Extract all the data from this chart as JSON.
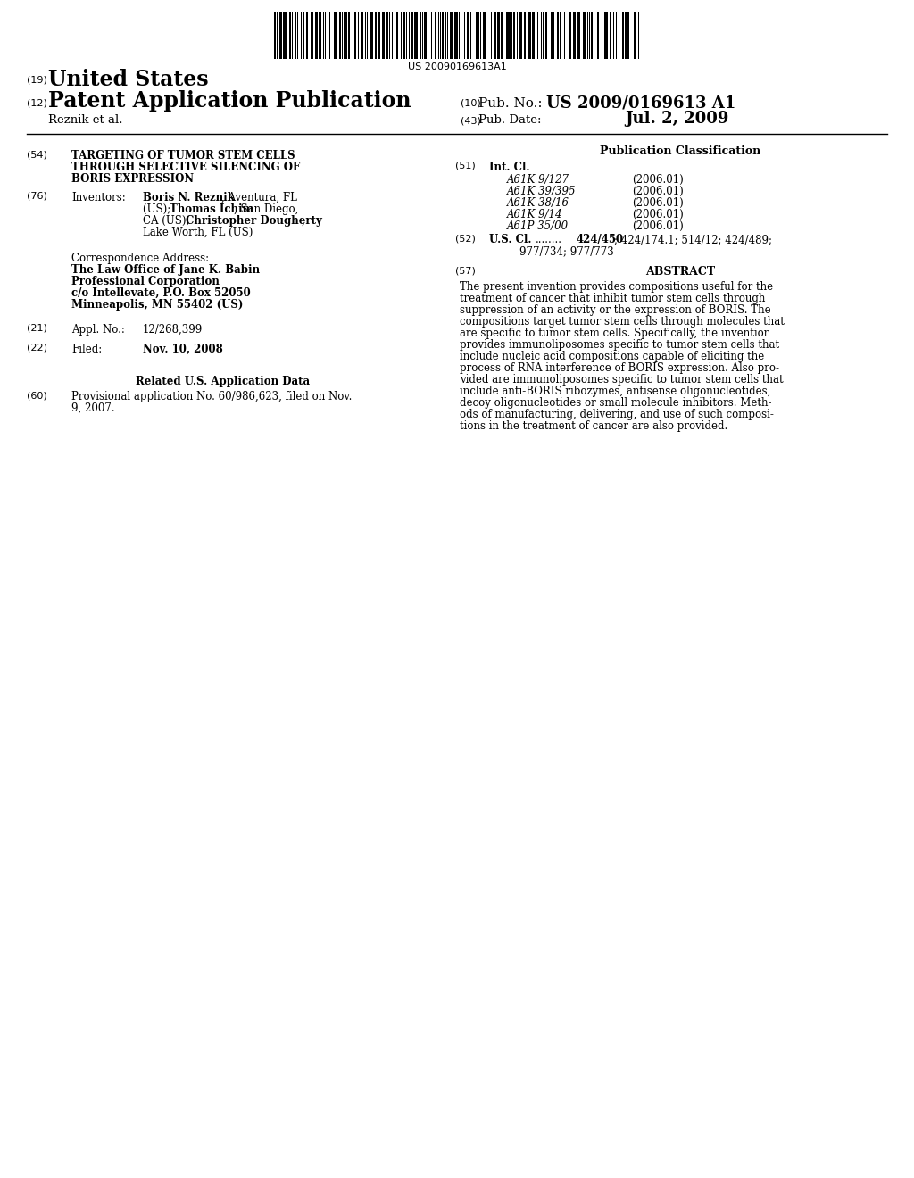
{
  "background_color": "#ffffff",
  "barcode_text": "US 20090169613A1",
  "num_19": "(19)",
  "united_states": "United States",
  "num_12": "(12)",
  "patent_app_pub": "Patent Application Publication",
  "num_10": "(10)",
  "pub_no_label": "Pub. No.:",
  "pub_no_value": "US 2009/0169613 A1",
  "reznik_et_al": "Reznik et al.",
  "num_43": "(43)",
  "pub_date_label": "Pub. Date:",
  "pub_date_value": "Jul. 2, 2009",
  "num_54": "(54)",
  "title_line1": "TARGETING OF TUMOR STEM CELLS",
  "title_line2": "THROUGH SELECTIVE SILENCING OF",
  "title_line3": "BORIS EXPRESSION",
  "num_76": "(76)",
  "inventors_label": "Inventors:",
  "corr_addr_label": "Correspondence Address:",
  "corr_line1": "The Law Office of Jane K. Babin",
  "corr_line2": "Professional Corporation",
  "corr_line3": "c/o Intellevate, P.O. Box 52050",
  "corr_line4": "Minneapolis, MN 55402 (US)",
  "num_21": "(21)",
  "appl_no_label": "Appl. No.:",
  "appl_no_value": "12/268,399",
  "num_22": "(22)",
  "filed_label": "Filed:",
  "filed_value": "Nov. 10, 2008",
  "related_data_label": "Related U.S. Application Data",
  "num_60": "(60)",
  "provisional_line1": "Provisional application No. 60/986,623, filed on Nov.",
  "provisional_line2": "9, 2007.",
  "pub_classification_label": "Publication Classification",
  "num_51": "(51)",
  "int_cl_label": "Int. Cl.",
  "int_cl_entries": [
    [
      "A61K 9/127",
      "(2006.01)"
    ],
    [
      "A61K 39/395",
      "(2006.01)"
    ],
    [
      "A61K 38/16",
      "(2006.01)"
    ],
    [
      "A61K 9/14",
      "(2006.01)"
    ],
    [
      "A61P 35/00",
      "(2006.01)"
    ]
  ],
  "num_52": "(52)",
  "us_cl_label": "U.S. Cl.",
  "us_cl_dots": "........",
  "us_cl_bold": "424/450",
  "us_cl_rest1": "; 424/174.1; 514/12; 424/489;",
  "us_cl_rest2": "977/734; 977/773",
  "num_57": "(57)",
  "abstract_label": "ABSTRACT",
  "abstract_lines": [
    "The present invention provides compositions useful for the",
    "treatment of cancer that inhibit tumor stem cells through",
    "suppression of an activity or the expression of BORIS. The",
    "compositions target tumor stem cells through molecules that",
    "are specific to tumor stem cells. Specifically, the invention",
    "provides immunoliposomes specific to tumor stem cells that",
    "include nucleic acid compositions capable of eliciting the",
    "process of RNA interference of BORIS expression. Also pro-",
    "vided are immunoliposomes specific to tumor stem cells that",
    "include anti-BORIS ribozymes, antisense oligonucleotides,",
    "decoy oligonucleotides or small molecule inhibitors. Meth-",
    "ods of manufacturing, delivering, and use of such composi-",
    "tions in the treatment of cancer are also provided."
  ]
}
